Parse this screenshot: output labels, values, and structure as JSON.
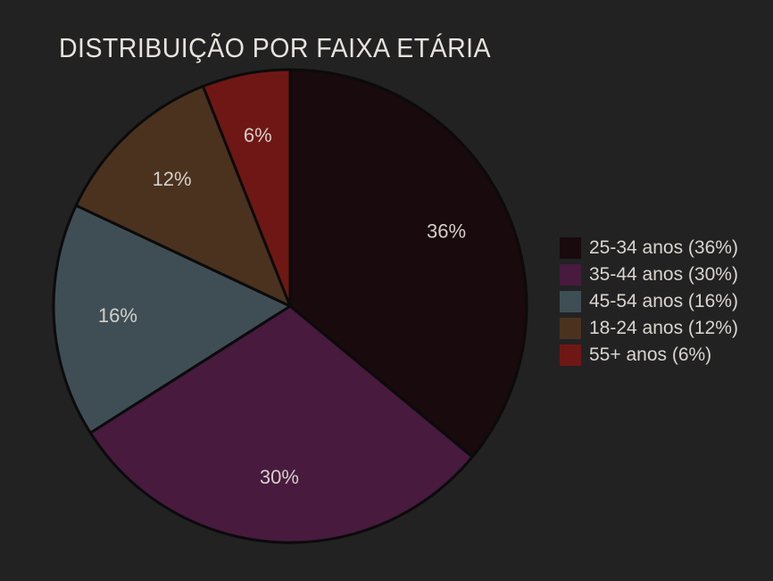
{
  "chart": {
    "title": "DISTRIBUIÇÃO POR FAIXA ETÁRIA"
  },
  "colors": {
    "background": "#222222",
    "title_text": "#e7e3de",
    "slice_label_text": "#d4cfc9",
    "legend_text": "#d9d5cf",
    "slice_outline": "#0b0b0b"
  },
  "chart_data": {
    "type": "pie",
    "title": "DISTRIBUIÇÃO POR FAIXA ETÁRIA",
    "start": "top",
    "direction": "clockwise",
    "legend_position": "right",
    "labels_inside": true,
    "slices": [
      {
        "label": "25-34 anos",
        "value": 36,
        "pct_label": "36%",
        "legend_text": "25-34 anos (36%)",
        "color": "#180a0d"
      },
      {
        "label": "35-44 anos",
        "value": 30,
        "pct_label": "30%",
        "legend_text": "35-44 anos (30%)",
        "color": "#471a3e"
      },
      {
        "label": "45-54 anos",
        "value": 16,
        "pct_label": "16%",
        "legend_text": "45-54 anos (16%)",
        "color": "#3f4e55"
      },
      {
        "label": "18-24 anos",
        "value": 12,
        "pct_label": "12%",
        "legend_text": "18-24 anos (12%)",
        "color": "#4a321f"
      },
      {
        "label": "55+ anos",
        "value": 6,
        "pct_label": "6%",
        "legend_text": "55+ anos (6%)",
        "color": "#6f1714"
      }
    ]
  }
}
